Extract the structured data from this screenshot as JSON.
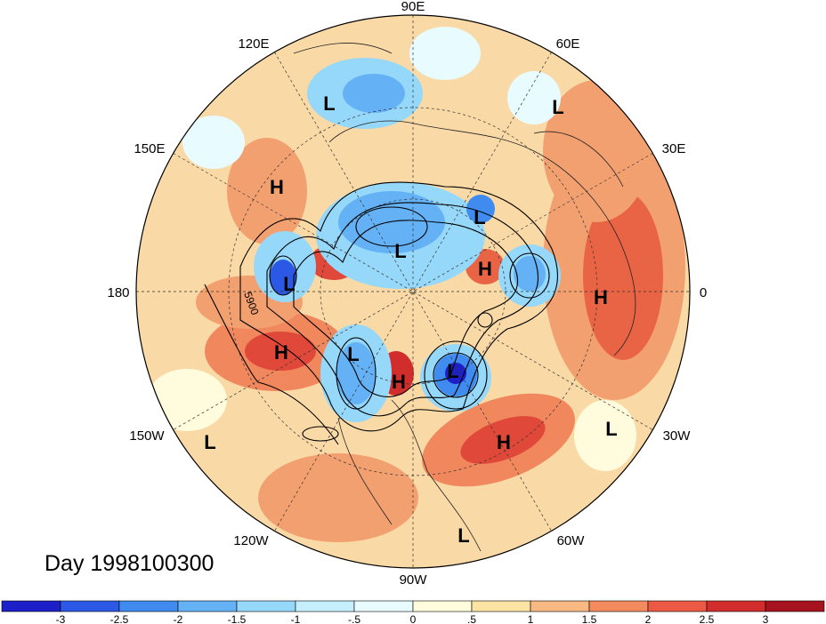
{
  "title": "Day 1998100300",
  "longitude_labels": [
    "90E",
    "60E",
    "30E",
    "0",
    "30W",
    "60W",
    "90W",
    "120W",
    "150W",
    "180",
    "150E",
    "120E"
  ],
  "contour_label": "5900",
  "pressure_centers": [
    {
      "type": "L"
    },
    {
      "type": "L"
    },
    {
      "type": "H"
    },
    {
      "type": "L"
    },
    {
      "type": "L"
    },
    {
      "type": "H"
    },
    {
      "type": "L"
    },
    {
      "type": "H"
    },
    {
      "type": "H"
    },
    {
      "type": "L"
    },
    {
      "type": "H"
    },
    {
      "type": "L"
    },
    {
      "type": "H"
    },
    {
      "type": "L"
    },
    {
      "type": "L"
    },
    {
      "type": "L"
    }
  ],
  "colorbar": {
    "colors": [
      "#1d1fc9",
      "#2b59e6",
      "#3f8bf0",
      "#64b1f5",
      "#96d8fa",
      "#c5effc",
      "#e8fbff",
      "#fffbdd",
      "#fbe3a3",
      "#f8b883",
      "#f38b5e",
      "#ec5a45",
      "#d12d2c",
      "#a5131f"
    ],
    "ticks": [
      "-3",
      "-2.5",
      "-2",
      "-1.5",
      "-1",
      "-.5",
      "0",
      ".5",
      "1",
      "1.5",
      "2",
      "2.5",
      "3"
    ]
  }
}
